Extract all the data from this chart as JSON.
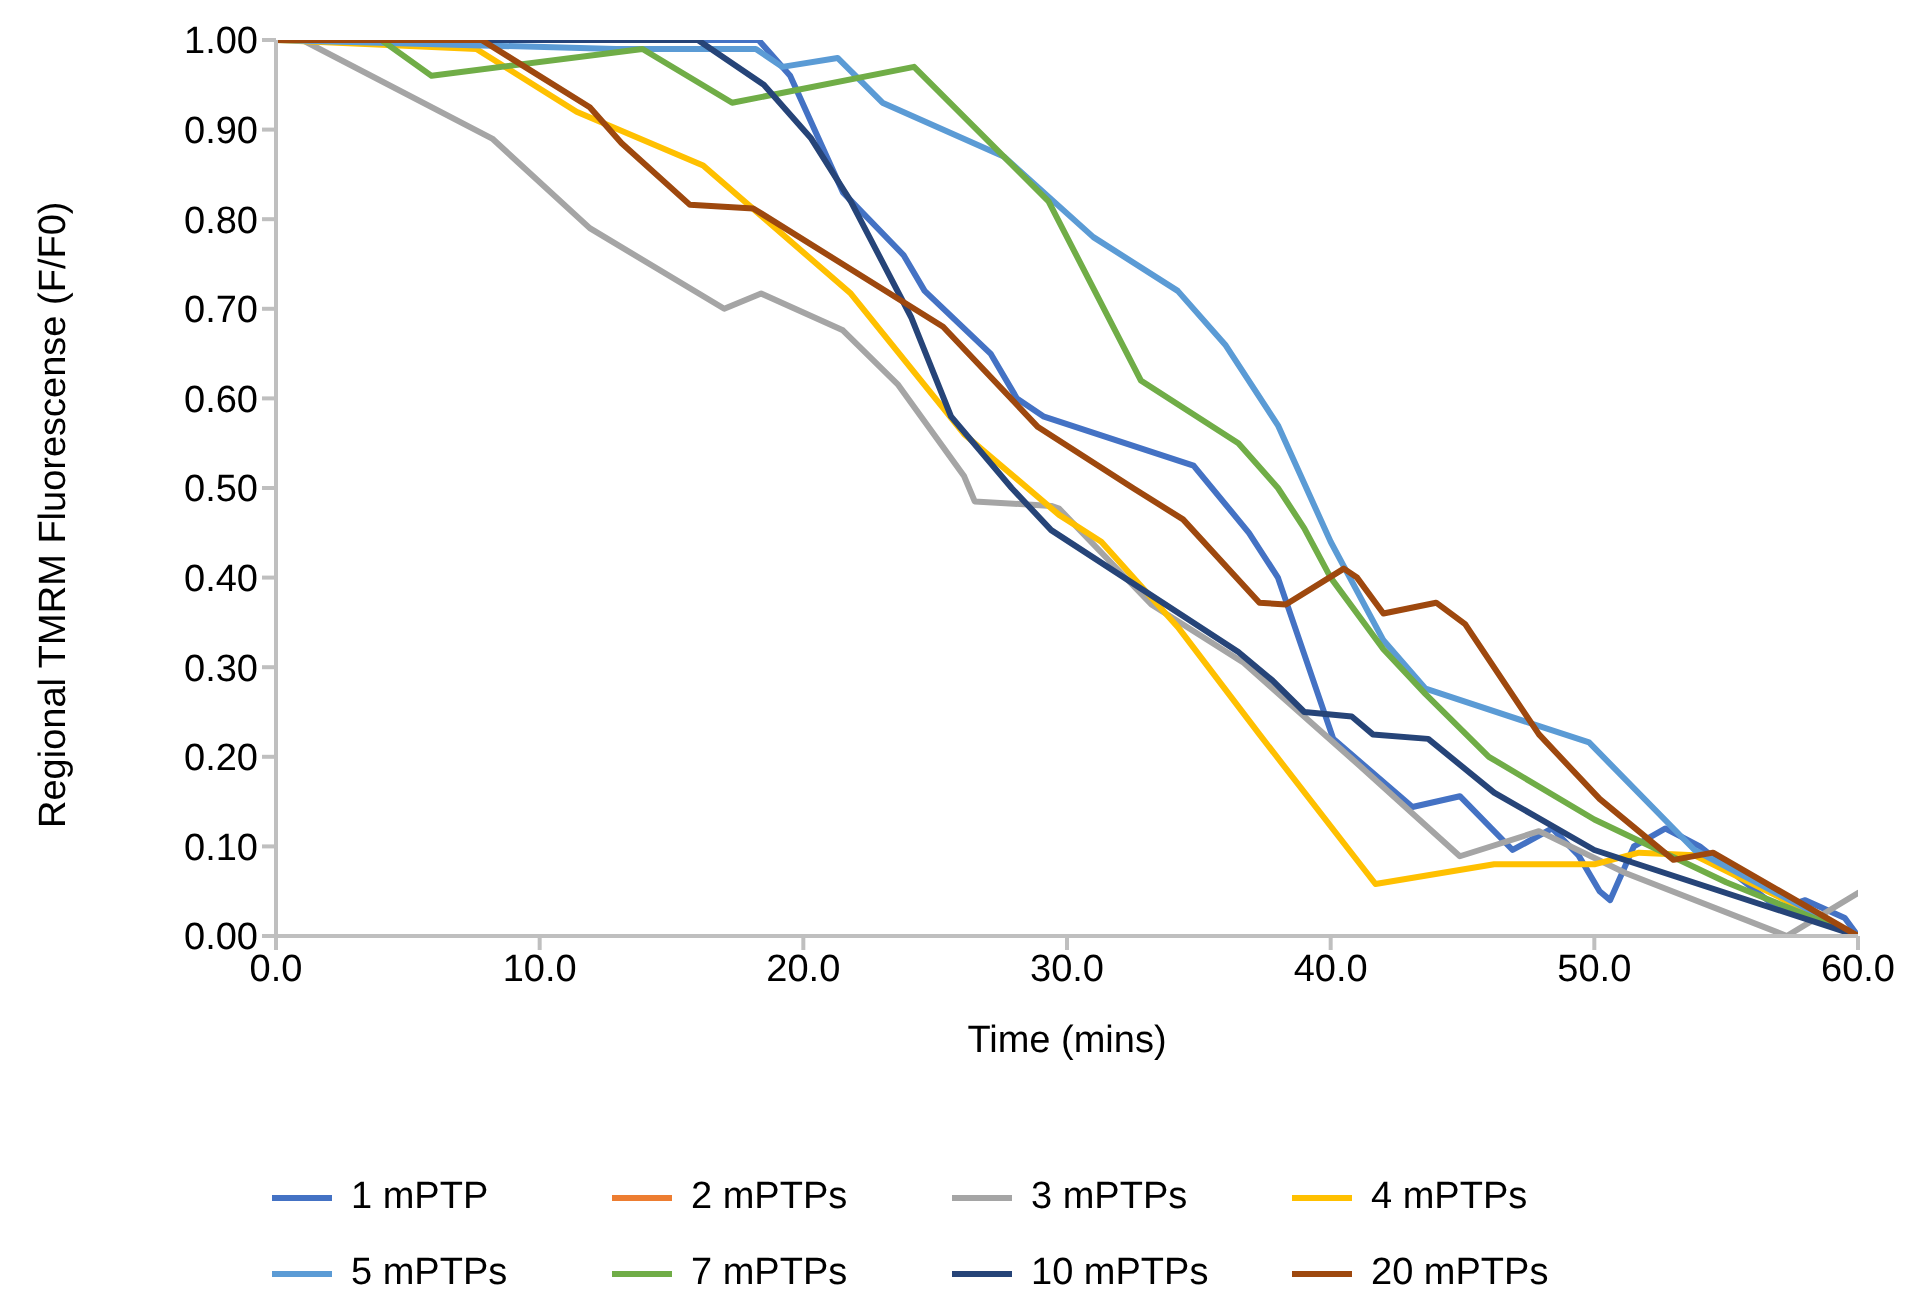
{
  "chart_data": {
    "type": "line",
    "xlabel": "Time (mins)",
    "ylabel": "Regional TMRM Fluorescense (F/F0)",
    "xlim": [
      0,
      60
    ],
    "ylim": [
      0,
      1
    ],
    "xticks": [
      {
        "value": 0,
        "label": "0.0"
      },
      {
        "value": 10,
        "label": "10.0"
      },
      {
        "value": 20,
        "label": "20.0"
      },
      {
        "value": 30,
        "label": "30.0"
      },
      {
        "value": 40,
        "label": "40.0"
      },
      {
        "value": 50,
        "label": "50.0"
      },
      {
        "value": 60,
        "label": "60.0"
      }
    ],
    "yticks": [
      {
        "value": 0,
        "label": "0.00"
      },
      {
        "value": 0.1,
        "label": "0.10"
      },
      {
        "value": 0.2,
        "label": "0.20"
      },
      {
        "value": 0.3,
        "label": "0.30"
      },
      {
        "value": 0.4,
        "label": "0.40"
      },
      {
        "value": 0.5,
        "label": "0.50"
      },
      {
        "value": 0.6,
        "label": "0.60"
      },
      {
        "value": 0.7,
        "label": "0.70"
      },
      {
        "value": 0.8,
        "label": "0.80"
      },
      {
        "value": 0.9,
        "label": "0.90"
      },
      {
        "value": 1,
        "label": "1.00"
      }
    ],
    "grid": false,
    "legend": "bottom",
    "marker": "none",
    "line_style": "solid",
    "series": [
      {
        "name": "1 mPTP",
        "color": "#4472c4",
        "x": [
          0,
          18.3,
          19.5,
          21.5,
          23.8,
          24.6,
          27.1,
          28.1,
          29.1,
          34.8,
          36.9,
          38,
          40.1,
          43.1,
          44.9,
          46.9,
          48.4,
          49.4,
          50.2,
          50.6,
          51.5,
          52.7,
          54,
          57,
          58,
          59.5,
          60
        ],
        "values": [
          1,
          1,
          0.96,
          0.83,
          0.76,
          0.72,
          0.65,
          0.6,
          0.58,
          0.525,
          0.45,
          0.4,
          0.22,
          0.144,
          0.156,
          0.096,
          0.12,
          0.09,
          0.05,
          0.04,
          0.1,
          0.12,
          0.1,
          0.03,
          0.04,
          0.02,
          0
        ]
      },
      {
        "name": "2 mPTPs",
        "color": "#ed7d31"
      },
      {
        "name": "3 mPTPs",
        "color": "#a5a5a5",
        "x": [
          0,
          1,
          8.2,
          11.9,
          17,
          18.4,
          21.5,
          23.6,
          26.1,
          26.5,
          29.4,
          29.7,
          33.2,
          36.7,
          41.1,
          44.9,
          47.9,
          51.2,
          57.3,
          60
        ],
        "values": [
          1,
          1,
          0.89,
          0.79,
          0.7,
          0.717,
          0.676,
          0.615,
          0.513,
          0.485,
          0.48,
          0.477,
          0.37,
          0.305,
          0.19,
          0.089,
          0.117,
          0.07,
          0,
          0.048
        ]
      },
      {
        "name": "4 mPTPs",
        "color": "#ffc000",
        "x": [
          0,
          7.6,
          11.4,
          16.2,
          21.8,
          26.1,
          29.7,
          31.3,
          34.2,
          37.3,
          41.7,
          46.2,
          50,
          51.7,
          53.8,
          60
        ],
        "values": [
          1,
          0.99,
          0.92,
          0.86,
          0.717,
          0.56,
          0.47,
          0.44,
          0.345,
          0.225,
          0.058,
          0.08,
          0.08,
          0.093,
          0.09,
          0
        ]
      },
      {
        "name": "5 mPTPs",
        "color": "#5b9bd5",
        "x": [
          0,
          12.9,
          18.2,
          19.2,
          21.3,
          23,
          27.6,
          31,
          34.2,
          36,
          38,
          40,
          42,
          43.6,
          49.8,
          53.8,
          60
        ],
        "values": [
          1,
          0.99,
          0.99,
          0.97,
          0.98,
          0.93,
          0.87,
          0.78,
          0.72,
          0.66,
          0.57,
          0.44,
          0.33,
          0.276,
          0.216,
          0.096,
          0
        ]
      },
      {
        "name": "7 mPTPs",
        "color": "#70ad47",
        "x": [
          0,
          4,
          5.9,
          13.9,
          17.3,
          24.2,
          29.3,
          32.8,
          36.5,
          38,
          39,
          40,
          42,
          43.6,
          46,
          50,
          55,
          60
        ],
        "values": [
          1,
          1,
          0.96,
          0.99,
          0.93,
          0.97,
          0.82,
          0.62,
          0.55,
          0.5,
          0.455,
          0.4,
          0.32,
          0.27,
          0.2,
          0.13,
          0.06,
          0
        ]
      },
      {
        "name": "10 mPTPs",
        "color": "#264478",
        "x": [
          0,
          16,
          18.5,
          20.3,
          21.8,
          24.1,
          25.6,
          27.9,
          29.4,
          36.5,
          37.8,
          39,
          40.8,
          41.6,
          43.7,
          46.2,
          50,
          60
        ],
        "values": [
          1,
          1,
          0.95,
          0.89,
          0.82,
          0.69,
          0.58,
          0.5,
          0.453,
          0.317,
          0.285,
          0.25,
          0.245,
          0.225,
          0.22,
          0.16,
          0.096,
          0
        ]
      },
      {
        "name": "20 mPTPs",
        "color": "#9e480e",
        "x": [
          0,
          7.8,
          11.9,
          13.1,
          15.7,
          18.1,
          25.3,
          28.9,
          32.5,
          34.4,
          37.3,
          38.3,
          40.5,
          41,
          42,
          44,
          45.1,
          47.9,
          50.2,
          53,
          54.5,
          60
        ],
        "values": [
          1,
          1,
          0.925,
          0.885,
          0.816,
          0.812,
          0.68,
          0.568,
          0.5,
          0.465,
          0.372,
          0.37,
          0.41,
          0.4,
          0.36,
          0.372,
          0.348,
          0.225,
          0.153,
          0.085,
          0.093,
          0
        ]
      }
    ]
  }
}
